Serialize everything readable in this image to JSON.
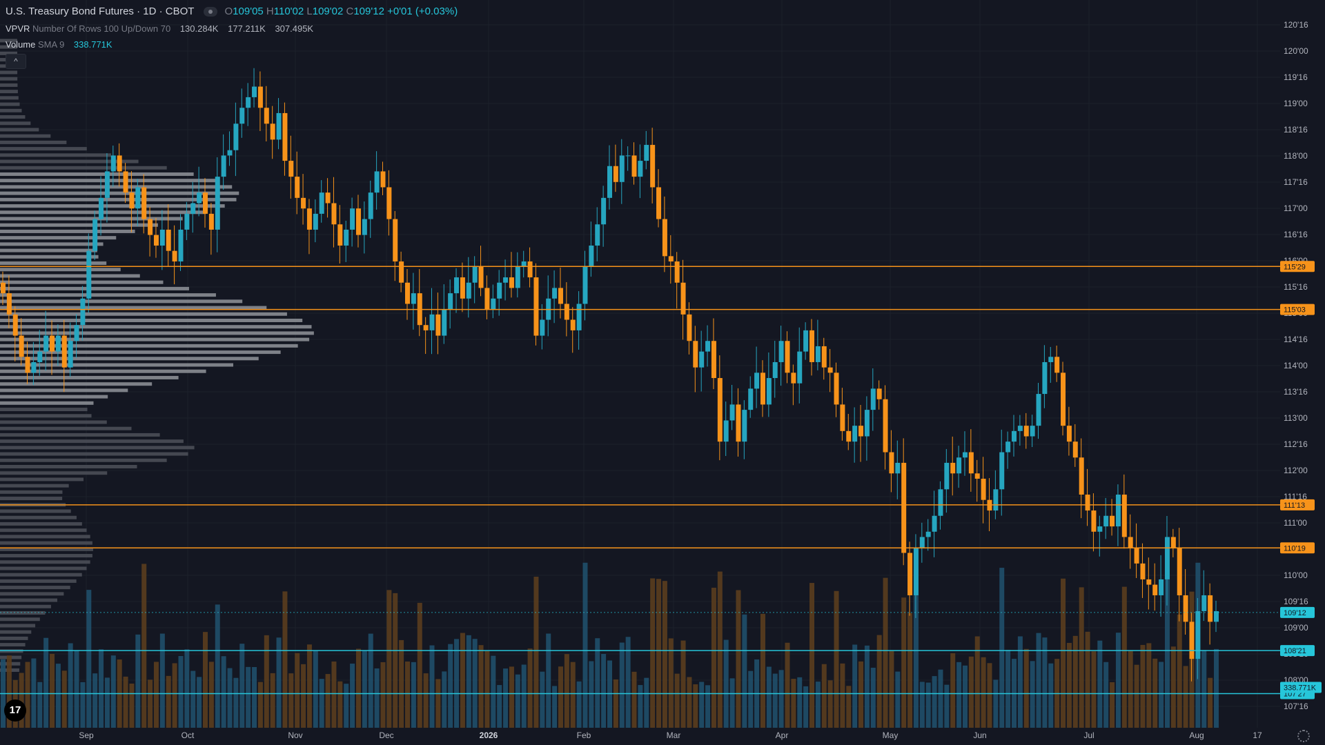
{
  "header": {
    "title": "U.S. Treasury Bond Futures · 1D · CBOT",
    "ohlc": {
      "o_label": "O",
      "o_value": "109'05",
      "h_label": "H",
      "h_value": "110'02",
      "l_label": "L",
      "l_value": "109'02",
      "c_label": "C",
      "c_value": "109'12",
      "change": "+0'01 (+0.03%)"
    }
  },
  "vpvr_legend": {
    "name": "VPVR",
    "params": "Number Of Rows 100 Up/Down 70",
    "v1": "130.284K",
    "v2": "177.211K",
    "v3": "307.495K"
  },
  "volume_legend": {
    "name": "Volume",
    "params": "SMA 9",
    "value": "338.771K"
  },
  "collapse_button": "^",
  "logo_text": "17",
  "colors": {
    "up": "#26a6c0",
    "down": "#f7931a",
    "background": "#141722",
    "grid": "#1c202b",
    "orange_line": "#f7931a",
    "cyan_line": "#26c6da",
    "volume_up": "#1f4f6a",
    "volume_down": "#5a3d1e"
  },
  "axis": {
    "y_ticks": [
      "120'16",
      "120'00",
      "119'16",
      "119'00",
      "118'16",
      "118'00",
      "117'16",
      "117'00",
      "116'16",
      "116'00",
      "115'16",
      "115'00",
      "114'16",
      "114'00",
      "113'16",
      "113'00",
      "112'16",
      "112'00",
      "111'16",
      "111'00",
      "110'16",
      "110'00",
      "109'16",
      "109'00",
      "108'16",
      "108'00",
      "107'16"
    ],
    "x_ticks": [
      "Sep",
      "Oct",
      "Nov",
      "Dec",
      "2026",
      "Feb",
      "Mar",
      "Apr",
      "May",
      "Jun",
      "Jul",
      "Aug",
      "17"
    ]
  },
  "chart_data": {
    "type": "candlestick",
    "title": "U.S. Treasury Bond Futures · 1D · CBOT",
    "ylim": [
      107.2,
      120.7
    ],
    "y_unit": "points (32nds notation)",
    "x_ticks": [
      "Sep",
      "Oct",
      "Nov",
      "Dec",
      "2026",
      "Feb",
      "Mar",
      "Apr",
      "May",
      "Jun",
      "Jul",
      "Aug",
      "17"
    ],
    "price_levels": [
      {
        "label": "115'29",
        "value": 115.906,
        "color": "#f7931a"
      },
      {
        "label": "115'03",
        "value": 115.094,
        "color": "#f7931a"
      },
      {
        "label": "111'13",
        "value": 111.406,
        "color": "#f7931a"
      },
      {
        "label": "110'19",
        "value": 110.594,
        "color": "#f7931a"
      },
      {
        "label": "109'12",
        "value": 109.375,
        "color": "#26c6da"
      },
      {
        "label": "108'21",
        "value": 108.656,
        "color": "#26c6da"
      },
      {
        "label": "107'27",
        "value": 107.844,
        "color": "#26c6da"
      }
    ],
    "volume_label": "338.771K",
    "closes": [
      115.4,
      115.0,
      114.6,
      114.2,
      113.9,
      114.1,
      114.3,
      114.6,
      114.3,
      114.6,
      114.0,
      114.5,
      114.8,
      115.3,
      116.2,
      116.8,
      117.2,
      117.7,
      118.0,
      117.7,
      117.3,
      117.0,
      117.4,
      116.8,
      116.5,
      116.3,
      116.6,
      116.2,
      116.0,
      116.6,
      116.9,
      117.1,
      117.3,
      116.9,
      116.6,
      117.6,
      118.0,
      118.1,
      118.6,
      118.9,
      119.1,
      119.3,
      118.9,
      118.6,
      118.3,
      118.8,
      117.9,
      117.6,
      117.2,
      117.0,
      116.6,
      116.9,
      117.3,
      117.1,
      116.7,
      116.3,
      116.6,
      117.0,
      116.5,
      116.8,
      117.3,
      117.7,
      117.4,
      116.8,
      116.0,
      115.6,
      115.2,
      115.4,
      114.8,
      114.7,
      115.0,
      114.6,
      115.1,
      115.4,
      115.7,
      115.3,
      115.6,
      115.9,
      115.5,
      115.1,
      115.3,
      115.6,
      115.7,
      115.5,
      115.9,
      116.0,
      115.7,
      114.6,
      114.9,
      115.3,
      115.5,
      115.2,
      114.9,
      114.7,
      115.2,
      115.9,
      116.3,
      116.7,
      117.2,
      117.8,
      117.5,
      118.0,
      118.0,
      117.6,
      117.9,
      118.2,
      117.4,
      116.8,
      116.1,
      116.0,
      115.6,
      115.0,
      114.5,
      114.0,
      114.3,
      114.5,
      113.8,
      112.6,
      113.0,
      113.3,
      112.6,
      113.2,
      113.6,
      113.9,
      113.3,
      113.8,
      114.1,
      114.5,
      113.9,
      113.7,
      114.3,
      114.7,
      114.1,
      114.4,
      114.0,
      113.9,
      113.3,
      112.8,
      112.6,
      112.9,
      112.7,
      113.2,
      113.6,
      113.4,
      112.4,
      112.0,
      112.2,
      110.5,
      109.7,
      110.6,
      110.8,
      110.9,
      111.2,
      111.7,
      112.2,
      112.0,
      112.3,
      112.4,
      112.0,
      111.9,
      111.5,
      111.3,
      111.7,
      112.4,
      112.6,
      112.8,
      112.9,
      112.7,
      112.9,
      113.5,
      114.1,
      114.2,
      113.9,
      112.9,
      112.6,
      112.3,
      111.6,
      111.3,
      110.9,
      111.0,
      111.2,
      111.0,
      111.6,
      110.8,
      110.6,
      110.3,
      110.0,
      109.9,
      109.7,
      110.0,
      110.8,
      110.6,
      109.7,
      109.2,
      108.5,
      109.4,
      109.7,
      109.2,
      109.4
    ]
  }
}
